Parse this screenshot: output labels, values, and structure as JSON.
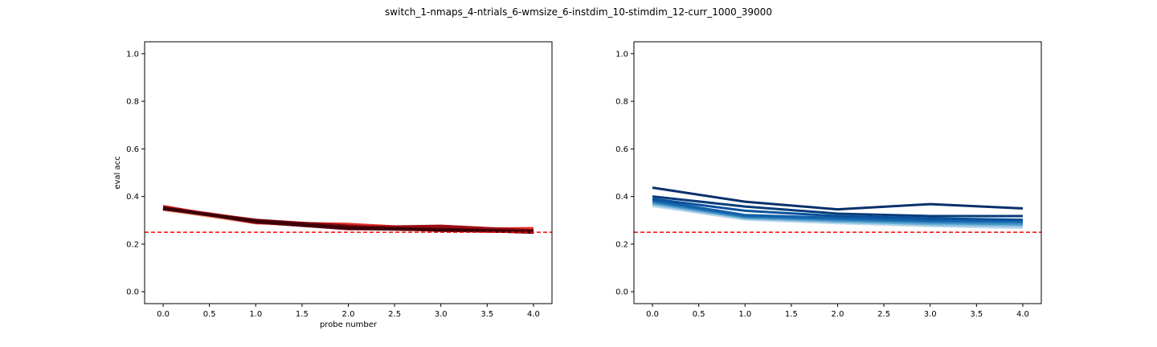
{
  "figure": {
    "suptitle": "switch_1-nmaps_4-ntrials_6-wmsize_6-instdim_10-stimdim_12-curr_1000_39000"
  },
  "chart_data": [
    {
      "type": "line",
      "panel": "left",
      "xlabel": "probe number",
      "ylabel": "eval acc",
      "xlim": [
        -0.2,
        4.2
      ],
      "ylim": [
        -0.05,
        1.05
      ],
      "xticks": [
        "0.0",
        "0.5",
        "1.0",
        "1.5",
        "2.0",
        "2.5",
        "3.0",
        "3.5",
        "4.0"
      ],
      "yticks": [
        "0.0",
        "0.2",
        "0.4",
        "0.6",
        "0.8",
        "1.0"
      ],
      "grid": false,
      "colormap": "Reds",
      "line_width": 4,
      "chance_line": {
        "y": 0.25,
        "color": "#ff0000",
        "style": "dashed"
      },
      "x": [
        0,
        1,
        2,
        3,
        4
      ],
      "series": [
        {
          "color": "#fcae91",
          "values": [
            0.345,
            0.29,
            0.27,
            0.262,
            0.258
          ]
        },
        {
          "color": "#fb8060",
          "values": [
            0.35,
            0.292,
            0.272,
            0.265,
            0.255
          ]
        },
        {
          "color": "#f6553c",
          "values": [
            0.352,
            0.3,
            0.268,
            0.258,
            0.26
          ]
        },
        {
          "color": "#e4322a",
          "values": [
            0.358,
            0.29,
            0.283,
            0.262,
            0.265
          ]
        },
        {
          "color": "#c1151b",
          "values": [
            0.355,
            0.298,
            0.265,
            0.27,
            0.25
          ]
        },
        {
          "color": "#9c0d13",
          "values": [
            0.35,
            0.295,
            0.27,
            0.275,
            0.256
          ]
        },
        {
          "color": "#7a0510",
          "values": [
            0.348,
            0.3,
            0.275,
            0.258,
            0.252
          ]
        },
        {
          "color": "#67000d",
          "values": [
            0.353,
            0.293,
            0.265,
            0.262,
            0.25
          ]
        },
        {
          "color": "#3a0008",
          "values": [
            0.35,
            0.296,
            0.268,
            0.26,
            0.253
          ]
        }
      ]
    },
    {
      "type": "line",
      "panel": "right",
      "xlabel": "",
      "ylabel": "",
      "xlim": [
        -0.2,
        4.2
      ],
      "ylim": [
        -0.05,
        1.05
      ],
      "xticks": [
        "0.0",
        "0.5",
        "1.0",
        "1.5",
        "2.0",
        "2.5",
        "3.0",
        "3.5",
        "4.0"
      ],
      "yticks": [
        "0.0",
        "0.2",
        "0.4",
        "0.6",
        "0.8",
        "1.0"
      ],
      "grid": false,
      "colormap": "Blues",
      "line_width": 3,
      "chance_line": {
        "y": 0.25,
        "color": "#ff0000",
        "style": "dashed"
      },
      "x": [
        0,
        1,
        2,
        3,
        4
      ],
      "series": [
        {
          "color": "#c6dbef",
          "values": [
            0.36,
            0.303,
            0.288,
            0.276,
            0.268
          ]
        },
        {
          "color": "#9ecae1",
          "values": [
            0.365,
            0.307,
            0.292,
            0.28,
            0.274
          ]
        },
        {
          "color": "#6baed6",
          "values": [
            0.37,
            0.31,
            0.296,
            0.285,
            0.28
          ]
        },
        {
          "color": "#4292c6",
          "values": [
            0.375,
            0.313,
            0.3,
            0.29,
            0.285
          ]
        },
        {
          "color": "#2171b5",
          "values": [
            0.38,
            0.317,
            0.305,
            0.296,
            0.292
          ]
        },
        {
          "color": "#1261a8",
          "values": [
            0.385,
            0.322,
            0.31,
            0.3,
            0.3
          ]
        },
        {
          "color": "#08519c",
          "values": [
            0.39,
            0.34,
            0.318,
            0.308,
            0.302
          ]
        },
        {
          "color": "#083c7a",
          "values": [
            0.4,
            0.358,
            0.328,
            0.318,
            0.318
          ]
        },
        {
          "color": "#08306b",
          "values": [
            0.437,
            0.378,
            0.346,
            0.368,
            0.35
          ]
        }
      ]
    }
  ]
}
